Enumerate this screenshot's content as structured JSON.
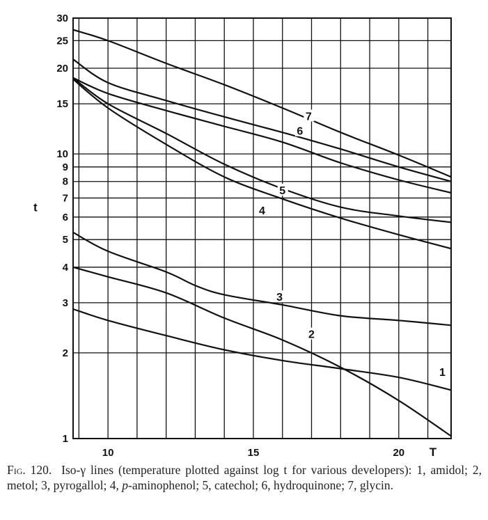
{
  "chart_data": {
    "type": "line",
    "xlabel": "T",
    "ylabel": "t",
    "y_scale": "log",
    "xlim": [
      8.8,
      21.8
    ],
    "ylim": [
      1,
      30
    ],
    "x_ticks": [
      10,
      15,
      20
    ],
    "y_ticks": [
      1,
      2,
      3,
      4,
      5,
      6,
      7,
      8,
      9,
      10,
      15,
      20,
      25,
      30
    ],
    "grid": true,
    "series": [
      {
        "name": "1",
        "label_at": [
          21.5,
          1.68
        ],
        "points": [
          [
            8.8,
            2.85
          ],
          [
            10,
            2.6
          ],
          [
            12,
            2.3
          ],
          [
            14,
            2.05
          ],
          [
            16,
            1.88
          ],
          [
            18,
            1.76
          ],
          [
            20,
            1.64
          ],
          [
            21.8,
            1.48
          ]
        ]
      },
      {
        "name": "2",
        "label_at": [
          17.0,
          2.28
        ],
        "points": [
          [
            8.8,
            4.0
          ],
          [
            10,
            3.7
          ],
          [
            12,
            3.25
          ],
          [
            14,
            2.65
          ],
          [
            16,
            2.22
          ],
          [
            18,
            1.78
          ],
          [
            20,
            1.36
          ],
          [
            21.8,
            1.02
          ]
        ]
      },
      {
        "name": "3",
        "label_at": [
          15.9,
          3.08
        ],
        "points": [
          [
            8.8,
            5.3
          ],
          [
            10,
            4.55
          ],
          [
            12,
            3.85
          ],
          [
            13,
            3.45
          ],
          [
            14,
            3.2
          ],
          [
            16,
            2.95
          ],
          [
            18,
            2.7
          ],
          [
            20,
            2.6
          ],
          [
            21.8,
            2.5
          ]
        ]
      },
      {
        "name": "4",
        "label_at": [
          15.3,
          6.2
        ],
        "points": [
          [
            8.8,
            18.3
          ],
          [
            10,
            14.5
          ],
          [
            12,
            10.8
          ],
          [
            14,
            8.3
          ],
          [
            16,
            6.95
          ],
          [
            18,
            5.95
          ],
          [
            20,
            5.2
          ],
          [
            21.8,
            4.65
          ]
        ]
      },
      {
        "name": "5",
        "label_at": [
          16.0,
          7.3
        ],
        "points": [
          [
            8.8,
            18.5
          ],
          [
            10,
            15.0
          ],
          [
            12,
            11.8
          ],
          [
            14,
            9.2
          ],
          [
            16,
            7.55
          ],
          [
            18,
            6.5
          ],
          [
            20,
            6.05
          ],
          [
            21.8,
            5.75
          ]
        ]
      },
      {
        "name": "6",
        "label_at": [
          16.6,
          11.8
        ],
        "points": [
          [
            8.8,
            18.5
          ],
          [
            10,
            16.3
          ],
          [
            12,
            14.2
          ],
          [
            14,
            12.5
          ],
          [
            16,
            11.0
          ],
          [
            18,
            9.3
          ],
          [
            20,
            8.1
          ],
          [
            21.8,
            7.3
          ]
        ]
      },
      {
        "name": "7",
        "label_at": [
          16.9,
          13.3
        ],
        "points": [
          [
            8.8,
            21.5
          ],
          [
            10,
            17.8
          ],
          [
            12,
            15.4
          ],
          [
            14,
            13.5
          ],
          [
            16,
            11.9
          ],
          [
            18,
            10.4
          ],
          [
            20,
            9.0
          ],
          [
            21.8,
            8.0
          ]
        ]
      },
      {
        "name": "",
        "points": [
          [
            8.8,
            27.3
          ],
          [
            10,
            25.0
          ],
          [
            12,
            20.8
          ],
          [
            14,
            17.5
          ],
          [
            16,
            14.5
          ],
          [
            18,
            11.9
          ],
          [
            20,
            9.9
          ],
          [
            21.8,
            8.3
          ]
        ]
      }
    ]
  },
  "caption": {
    "fig": "Fig. 120.",
    "pre": "Iso-γ lines (temperature plotted against log t for various developers): 1, amidol; 2, metol; 3, pyrogallol; 4, ",
    "italic": "p",
    "post": "-aminophenol; 5, catechol; 6, hydroquinone; 7, glycin."
  }
}
